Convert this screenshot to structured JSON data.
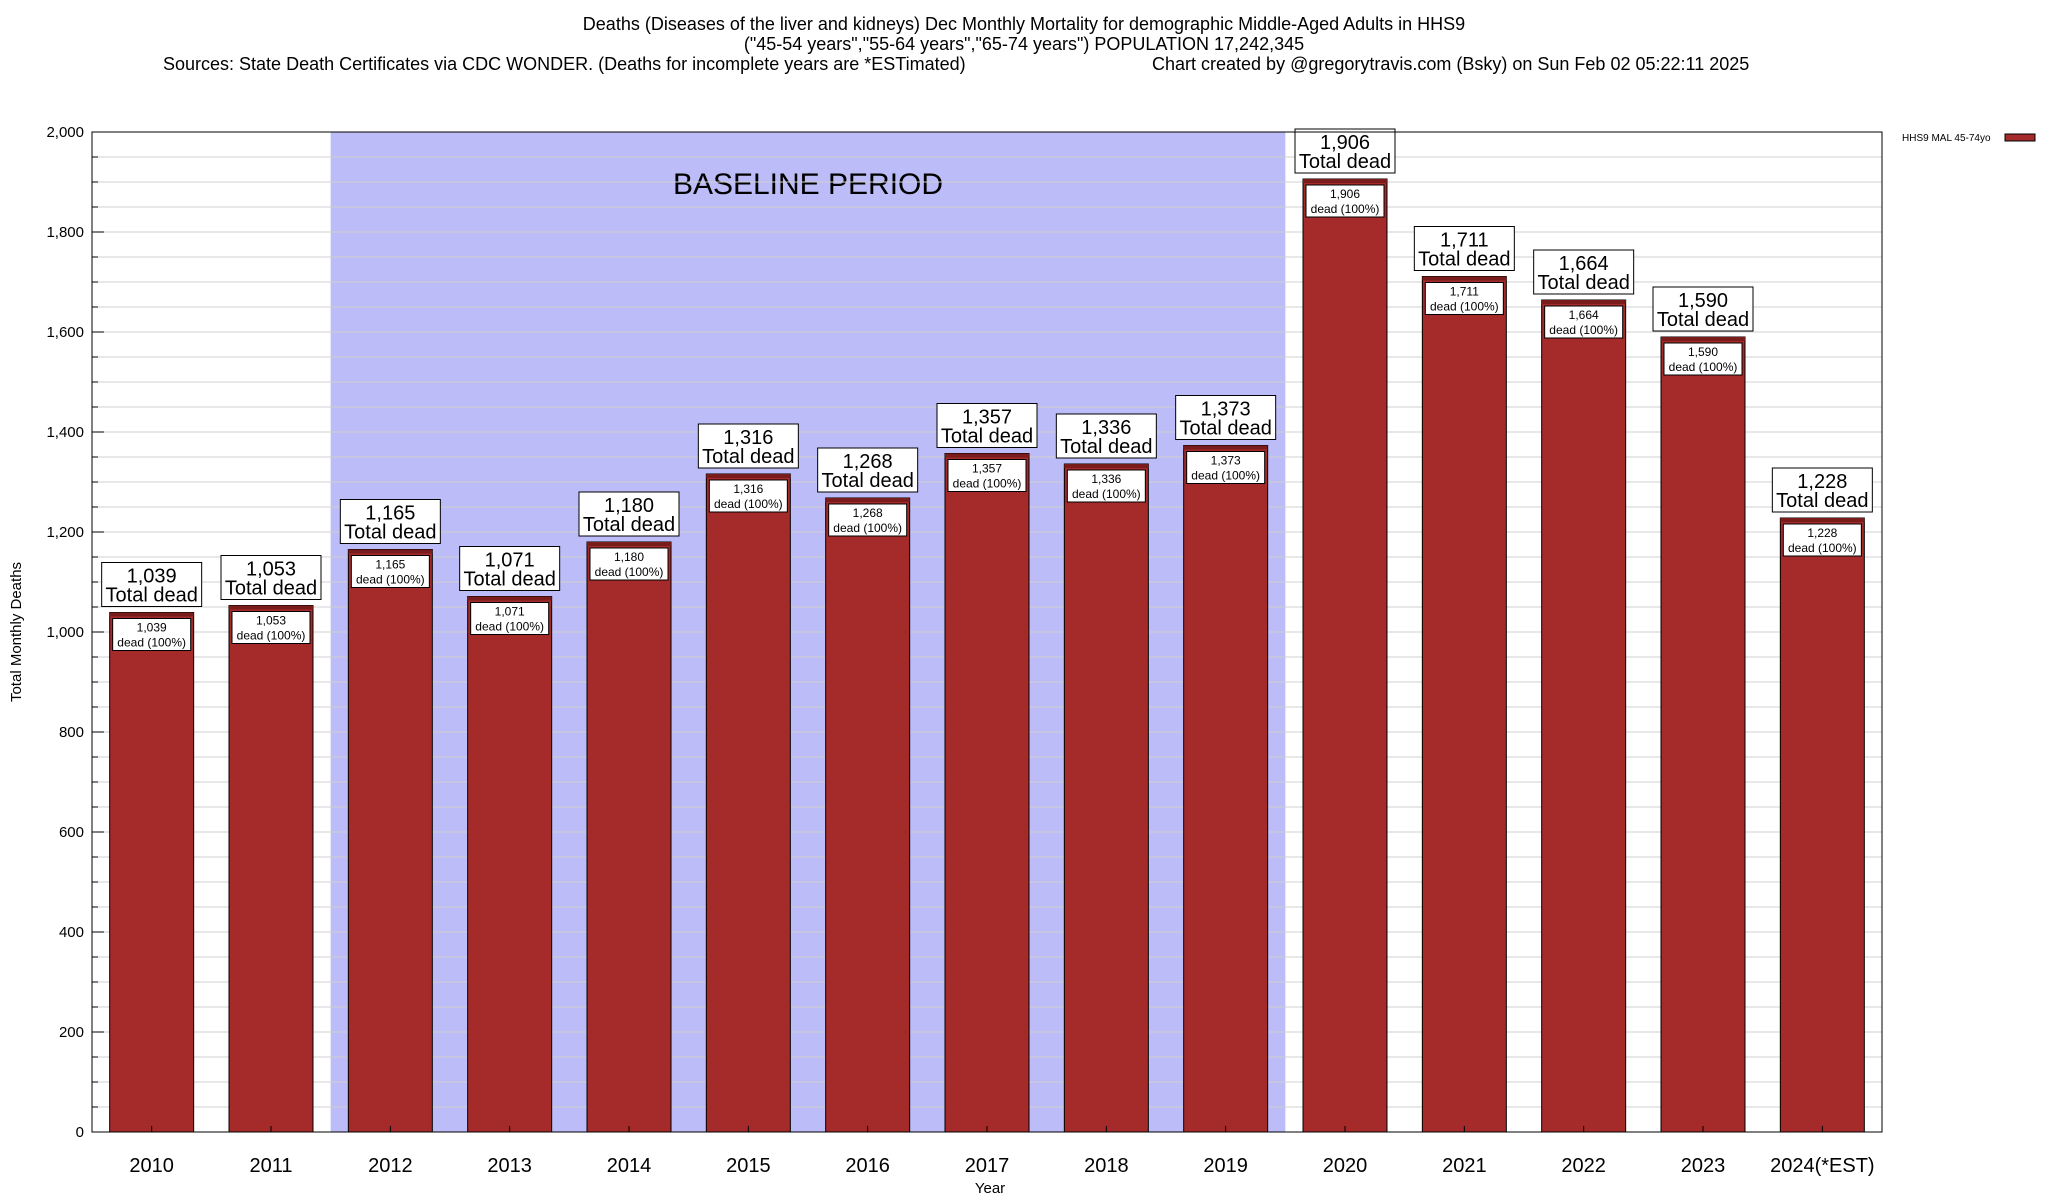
{
  "header": {
    "title_line1": "Deaths (Diseases of the liver and kidneys) Dec Monthly Mortality for demographic Middle-Aged Adults in HHS9",
    "title_line2": "(\"45-54 years\",\"55-64 years\",\"65-74 years\") POPULATION 17,242,345",
    "sources": "Sources: State Death Certificates via CDC WONDER. (Deaths for incomplete years are *ESTimated)",
    "credit": "Chart created by @gregorytravis.com (Bsky) on Sun Feb 02 05:22:11 2025"
  },
  "chart_data": {
    "type": "bar",
    "categories": [
      "2010",
      "2011",
      "2012",
      "2013",
      "2014",
      "2015",
      "2016",
      "2017",
      "2018",
      "2019",
      "2020",
      "2021",
      "2022",
      "2023",
      "2024(*EST)"
    ],
    "series": [
      {
        "name": "HHS9 MAL 45-74yo",
        "values": [
          1039,
          1053,
          1165,
          1071,
          1180,
          1316,
          1268,
          1357,
          1336,
          1373,
          1906,
          1711,
          1664,
          1590,
          1228
        ]
      }
    ],
    "value_labels": [
      "1,039",
      "1,053",
      "1,165",
      "1,071",
      "1,180",
      "1,316",
      "1,268",
      "1,357",
      "1,336",
      "1,373",
      "1,906",
      "1,711",
      "1,664",
      "1,590",
      "1,228"
    ],
    "total_label": "Total dead",
    "inner_label": "dead (100%)",
    "xlabel": "Year",
    "ylabel": "Total Monthly Deaths",
    "ylim": [
      0,
      2000
    ],
    "yticks": [
      0,
      200,
      400,
      600,
      800,
      1000,
      1200,
      1400,
      1600,
      1800,
      2000
    ],
    "ytick_labels": [
      "0",
      "200",
      "400",
      "600",
      "800",
      "1,000",
      "1,200",
      "1,400",
      "1,600",
      "1,800",
      "2,000"
    ],
    "minor_step": 50,
    "baseline_period": {
      "label": "BASELINE PERIOD",
      "from": "2012",
      "to": "2019"
    },
    "legend_position": "top-right",
    "colors": {
      "bar": "#a52a2a",
      "bar_top": "#7a1c1c",
      "baseline": "#bcbcf9",
      "grid": "#d0d0d0"
    }
  }
}
